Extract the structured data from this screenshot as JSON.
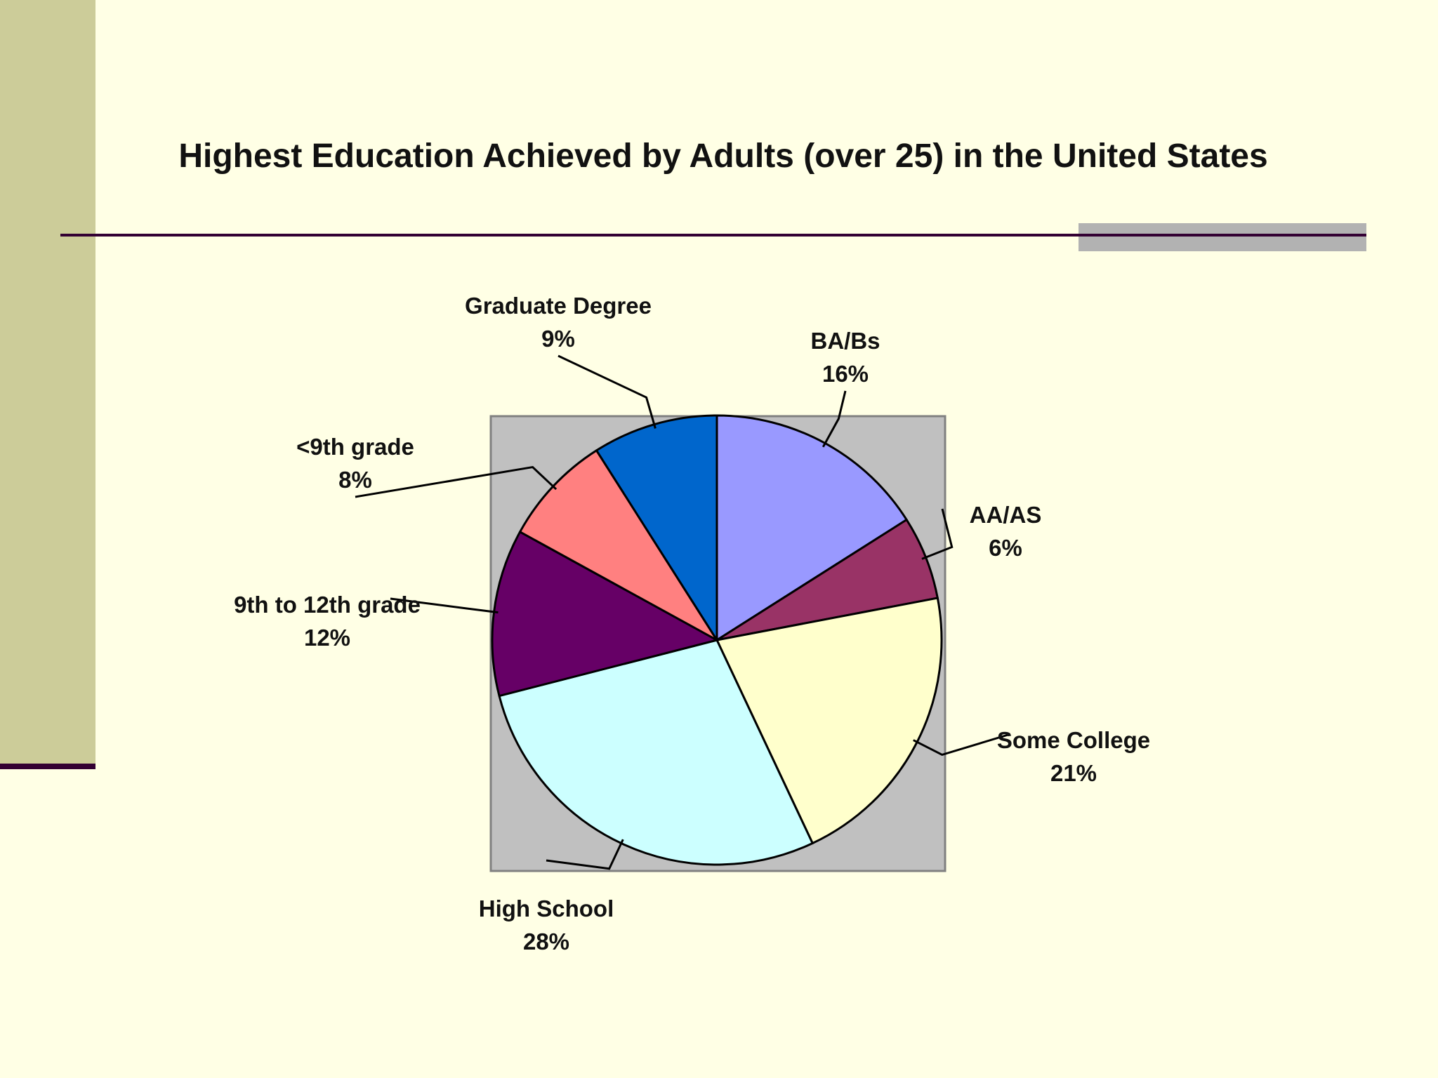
{
  "chart_data": {
    "type": "pie",
    "title": "Highest Education Achieved by Adults (over 25) in the United States",
    "slices": [
      {
        "name": "BA/Bs",
        "value": 16,
        "label": "16%",
        "color": "#9999FF"
      },
      {
        "name": "AA/AS",
        "value": 6,
        "label": "6%",
        "color": "#993366"
      },
      {
        "name": "Some College",
        "value": 21,
        "label": "21%",
        "color": "#FFFFCC"
      },
      {
        "name": "High School",
        "value": 28,
        "label": "28%",
        "color": "#CCFFFF"
      },
      {
        "name": "9th to 12th grade",
        "value": 12,
        "label": "12%",
        "color": "#660066"
      },
      {
        "name": "<9th grade",
        "value": 8,
        "label": "8%",
        "color": "#FF8080"
      },
      {
        "name": "Graduate Degree",
        "value": 9,
        "label": "9%",
        "color": "#0066CC"
      }
    ],
    "plot_area_color": "#C0C0C0",
    "legend": "none",
    "data_labels": "outside with leader lines"
  },
  "theme": {
    "background": "#FFFFE5",
    "left_bar": "#CCCC99",
    "rule": "#330033",
    "accent": "#B2B2B2"
  }
}
